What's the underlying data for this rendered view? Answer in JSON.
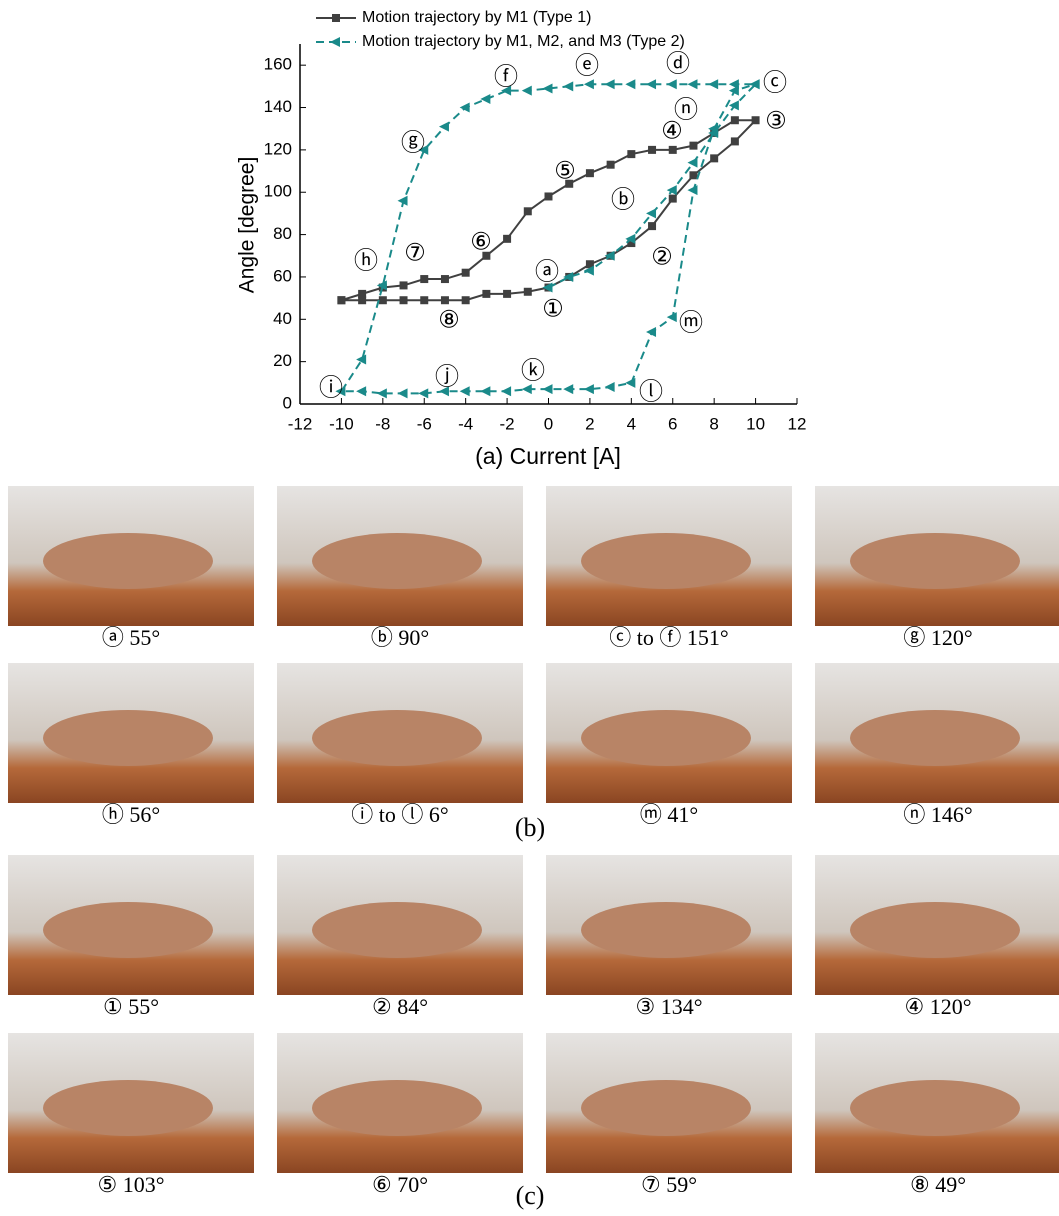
{
  "chart_data": {
    "type": "line",
    "xlabel": "(a) Current [A]",
    "ylabel": "Angle [degree]",
    "xlim": [
      -12,
      12
    ],
    "xticks": [
      -12,
      -10,
      -8,
      -6,
      -4,
      -2,
      0,
      2,
      4,
      6,
      8,
      10,
      12
    ],
    "ylim": [
      0,
      170
    ],
    "yticks": [
      0,
      20,
      40,
      60,
      80,
      100,
      120,
      140,
      160
    ],
    "legend": "top",
    "series": [
      {
        "name": "Motion trajectory by M1 (Type 1)",
        "color": "#404040",
        "linestyle": "solid",
        "marker": "square",
        "x": [
          -10,
          -9,
          -8,
          -7,
          -6,
          -5,
          -4,
          -3,
          -2,
          -1,
          0,
          1,
          2,
          3,
          4,
          5,
          6,
          7,
          8,
          9,
          10,
          9,
          8,
          7,
          6,
          5,
          4,
          3,
          2,
          1,
          0,
          -1,
          -2,
          -3,
          -4,
          -5,
          -6,
          -7,
          -8,
          -9,
          -10
        ],
        "values": [
          49,
          49,
          49,
          49,
          49,
          49,
          49,
          52,
          52,
          53,
          55,
          60,
          66,
          70,
          76,
          84,
          97,
          108,
          116,
          124,
          134,
          134,
          128,
          122,
          120,
          120,
          118,
          113,
          109,
          104,
          98,
          91,
          78,
          70,
          62,
          59,
          59,
          56,
          55,
          52,
          49
        ]
      },
      {
        "name": "Motion trajectory by M1, M2, and M3 (Type 2)",
        "color": "#1a8a8a",
        "linestyle": "dashed",
        "marker": "triangle",
        "x": [
          0,
          1,
          2,
          3,
          4,
          5,
          6,
          7,
          8,
          9,
          10,
          9,
          8,
          7,
          6,
          5,
          4,
          3,
          2,
          1,
          0,
          -1,
          -2,
          -3,
          -4,
          -5,
          -6,
          -7,
          -8,
          -9,
          -10,
          -9,
          -8,
          -7,
          -6,
          -5,
          -4,
          -3,
          -2,
          -1,
          0,
          1,
          2,
          3,
          4,
          5,
          6,
          7,
          8,
          9,
          10
        ],
        "values": [
          55,
          60,
          63,
          70,
          78,
          90,
          101,
          114,
          128,
          141,
          151,
          151,
          151,
          151,
          151,
          151,
          151,
          151,
          151,
          150,
          149,
          148,
          148,
          144,
          140,
          131,
          120,
          96,
          56,
          21,
          6,
          6,
          5,
          5,
          5,
          6,
          6,
          6,
          6,
          7,
          7,
          7,
          7,
          8,
          10,
          34,
          41,
          101,
          130,
          148,
          151
        ]
      }
    ],
    "annotations": [
      "ⓕ",
      "ⓔ",
      "ⓓ",
      "ⓒ",
      "ⓖ",
      "④",
      "ⓝ",
      "③",
      "⑤",
      "ⓑ",
      "②",
      "⑥",
      "⑦",
      "ⓗ",
      "ⓐ",
      "①",
      "⑧",
      "ⓜ",
      "ⓘ",
      "ⓙ",
      "ⓚ",
      "ⓛ"
    ]
  },
  "panel_b": {
    "label": "(b)",
    "captions": [
      "ⓐ 55°",
      "ⓑ 90°",
      "ⓒ to ⓕ 151°",
      "ⓖ 120°",
      "ⓗ 56°",
      "ⓘ to ⓛ 6°",
      "ⓜ 41°",
      "ⓝ 146°"
    ]
  },
  "panel_c": {
    "label": "(c)",
    "captions": [
      "① 55°",
      "② 84°",
      "③ 134°",
      "④ 120°",
      "⑤ 103°",
      "⑥ 70°",
      "⑦ 59°",
      "⑧ 49°"
    ]
  }
}
